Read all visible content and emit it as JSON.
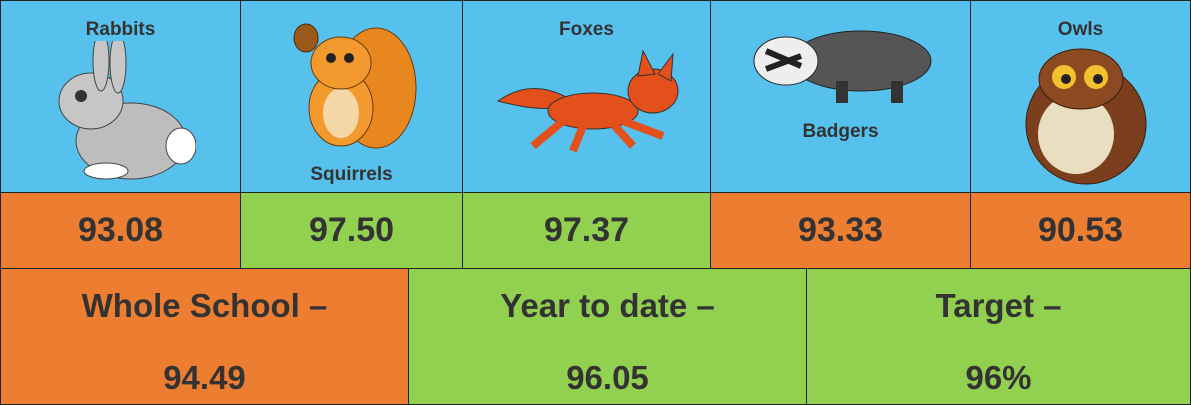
{
  "classes": [
    {
      "name": "Rabbits",
      "score": "93.08"
    },
    {
      "name": "Squirrels",
      "score": "97.50"
    },
    {
      "name": "Foxes",
      "score": "97.37"
    },
    {
      "name": "Badgers",
      "score": "93.33"
    },
    {
      "name": "Owls",
      "score": "90.53"
    }
  ],
  "summary": [
    {
      "label": "Whole School –",
      "value": "94.49"
    },
    {
      "label": "Year to date –",
      "value": "96.05"
    },
    {
      "label": "Target –",
      "value": "96%"
    }
  ]
}
